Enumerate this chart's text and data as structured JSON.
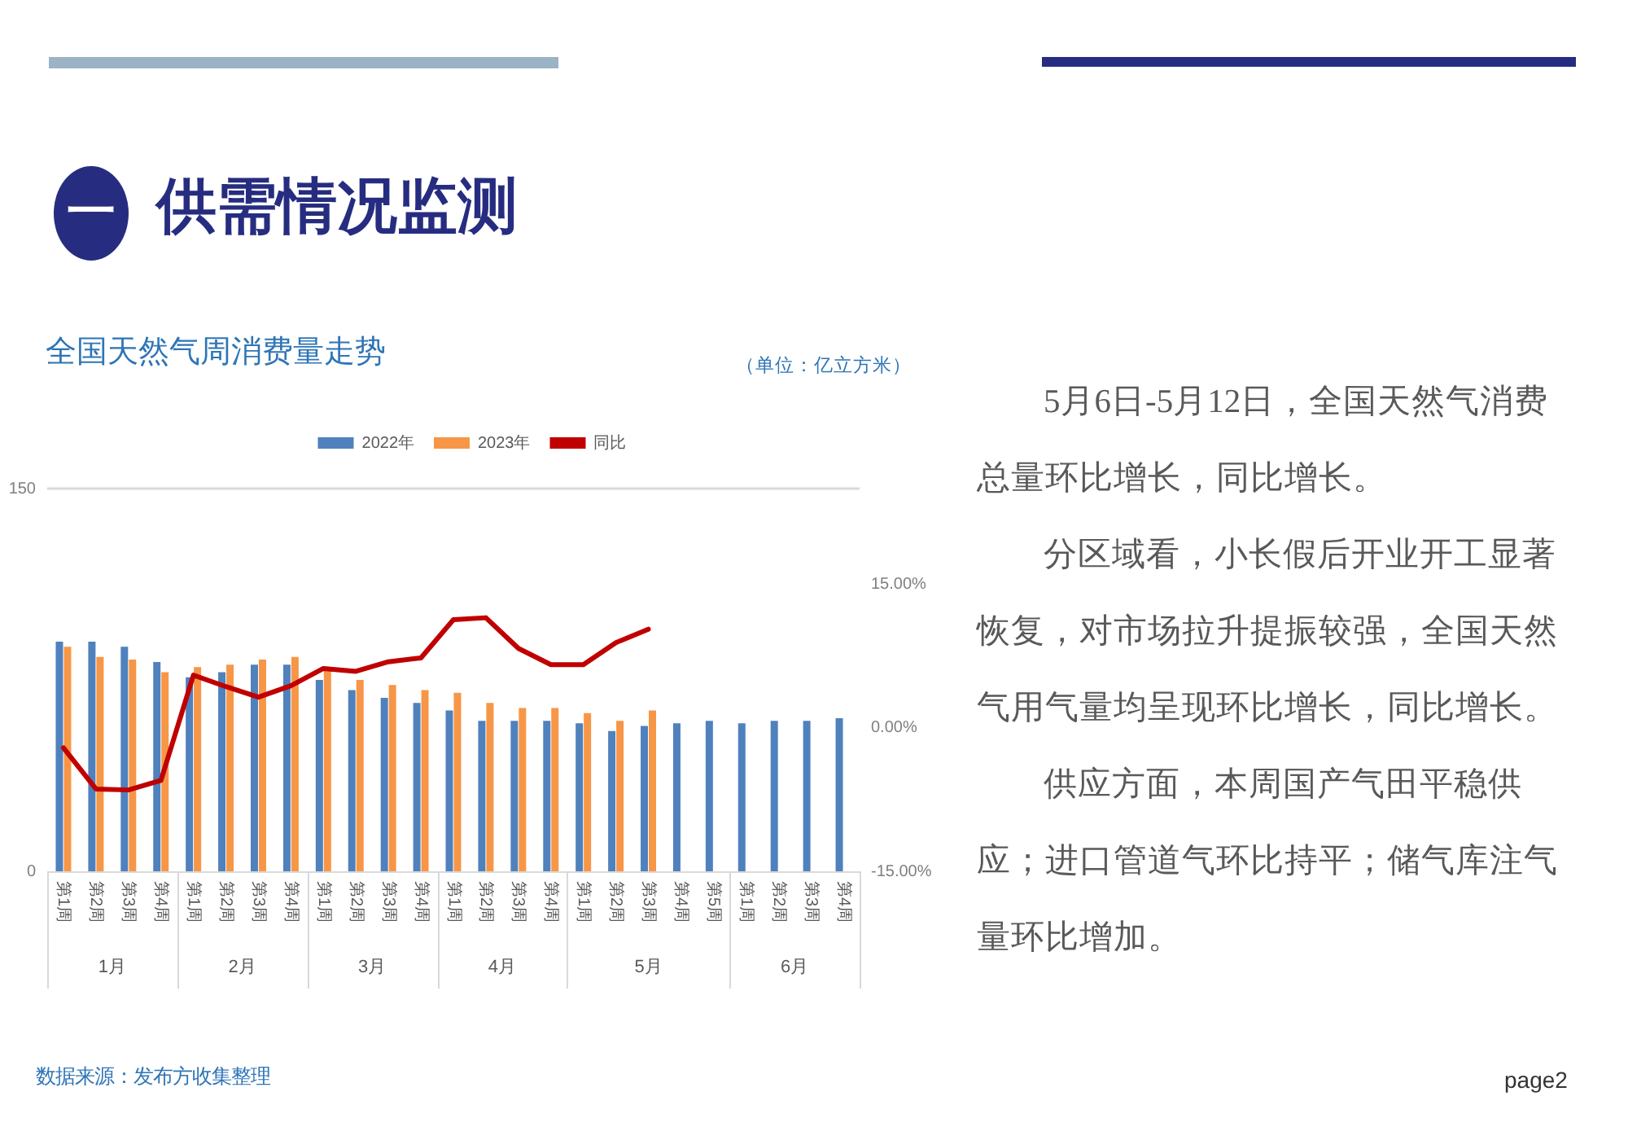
{
  "chart_data": {
    "type": "bar",
    "title": "全国天然气周消费量走势",
    "categories": [
      "第1周",
      "第2周",
      "第3周",
      "第4周",
      "第1周",
      "第2周",
      "第3周",
      "第4周",
      "第1周",
      "第2周",
      "第3周",
      "第4周",
      "第1周",
      "第2周",
      "第3周",
      "第4周",
      "第1周",
      "第2周",
      "第3周",
      "第4周",
      "第5周",
      "第1周",
      "第2周",
      "第3周",
      "第4周"
    ],
    "series": [
      {
        "name": "2022年",
        "color": "#4f81bd",
        "values": [
          90,
          90,
          88,
          82,
          76,
          78,
          81,
          81,
          75,
          71,
          68,
          66,
          63,
          59,
          59,
          59,
          58,
          55,
          57,
          58,
          59,
          58,
          59,
          59,
          60
        ]
      },
      {
        "name": "2023年",
        "color": "#f79646",
        "values": [
          88,
          84,
          83,
          78,
          80,
          81,
          83,
          84,
          79,
          75,
          73,
          71,
          70,
          66,
          64,
          64,
          62,
          59,
          63,
          null,
          null,
          null,
          null,
          null,
          null
        ]
      },
      {
        "name": "同比",
        "type": "line",
        "axis": "y2",
        "color": "#c00000",
        "values": [
          -2.1,
          -6.4,
          -6.5,
          -5.5,
          5.5,
          4.3,
          3.2,
          4.4,
          6.2,
          5.9,
          6.9,
          7.3,
          11.3,
          11.5,
          8.3,
          6.6,
          6.6,
          8.9,
          10.3,
          null,
          null,
          null,
          null,
          null,
          null
        ]
      }
    ],
    "ylim": [
      0,
      150
    ],
    "yticks": [
      0,
      150
    ],
    "y2lim": [
      -15,
      25
    ],
    "y2ticks": [
      {
        "value": -15,
        "label": "-15.00%"
      },
      {
        "value": 0,
        "label": "0.00%"
      },
      {
        "value": 15,
        "label": "15.00%"
      }
    ],
    "legend": "top",
    "marker": "none",
    "line_style": "solid",
    "annotations": [
      "（单位：亿立方米）",
      "一",
      "供需情况监测",
      "5月6日-5月12日，全国天然气消费总量环比增长，同比增长。",
      "分区域看，小长假后开业开工显著恢复，对市场拉升提振较强，全国天然气用气量均呈现环比增长，同比增长。",
      "供应方面，本周国产气田平稳供应；进口管道气环比持平；储气库注气量环比增加。",
      "数据来源：发布方收集整理",
      "page2",
      "1月",
      "2月",
      "3月",
      "4月",
      "5月",
      "6月"
    ]
  }
}
